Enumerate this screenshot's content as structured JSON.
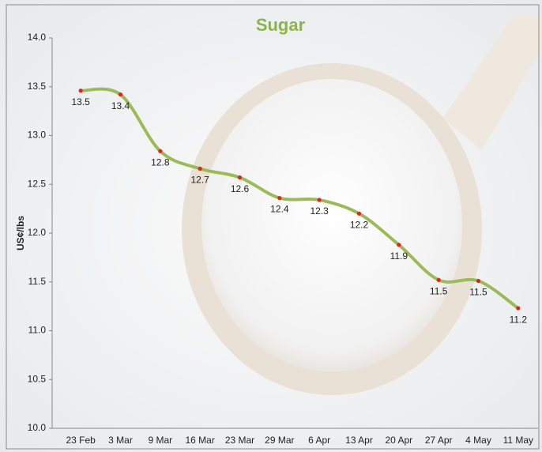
{
  "chart_data": {
    "type": "line",
    "title": "Sugar",
    "y_label": "US¢/lbs",
    "categories": [
      "23 Feb",
      "3 Mar",
      "9 Mar",
      "16 Mar",
      "23 Mar",
      "29 Mar",
      "6 Apr",
      "13 Apr",
      "20 Apr",
      "27 Apr",
      "4 May",
      "11 May"
    ],
    "series": [
      {
        "name": "Sugar",
        "color": "#9bbb59",
        "marker_color": "#e0241b",
        "values": [
          13.46,
          13.42,
          12.84,
          12.66,
          12.57,
          12.36,
          12.34,
          12.2,
          11.88,
          11.52,
          11.51,
          11.23
        ],
        "value_labels": [
          "13.5",
          "13.4",
          "12.8",
          "12.7",
          "12.6",
          "12.4",
          "12.3",
          "12.2",
          "11.9",
          "11.5",
          "11.5",
          "11.2"
        ]
      }
    ],
    "ylim": [
      10,
      14
    ],
    "yticks": [
      {
        "value": 10,
        "label": "10.0"
      },
      {
        "value": 10.5,
        "label": "10.5"
      },
      {
        "value": 11,
        "label": "11.0"
      },
      {
        "value": 11.5,
        "label": "11.5"
      },
      {
        "value": 12,
        "label": "12.0"
      },
      {
        "value": 12.5,
        "label": "12.5"
      },
      {
        "value": 13,
        "label": "13.0"
      },
      {
        "value": 13.5,
        "label": "13.5"
      },
      {
        "value": 14,
        "label": "14.0"
      }
    ],
    "grid": false
  }
}
